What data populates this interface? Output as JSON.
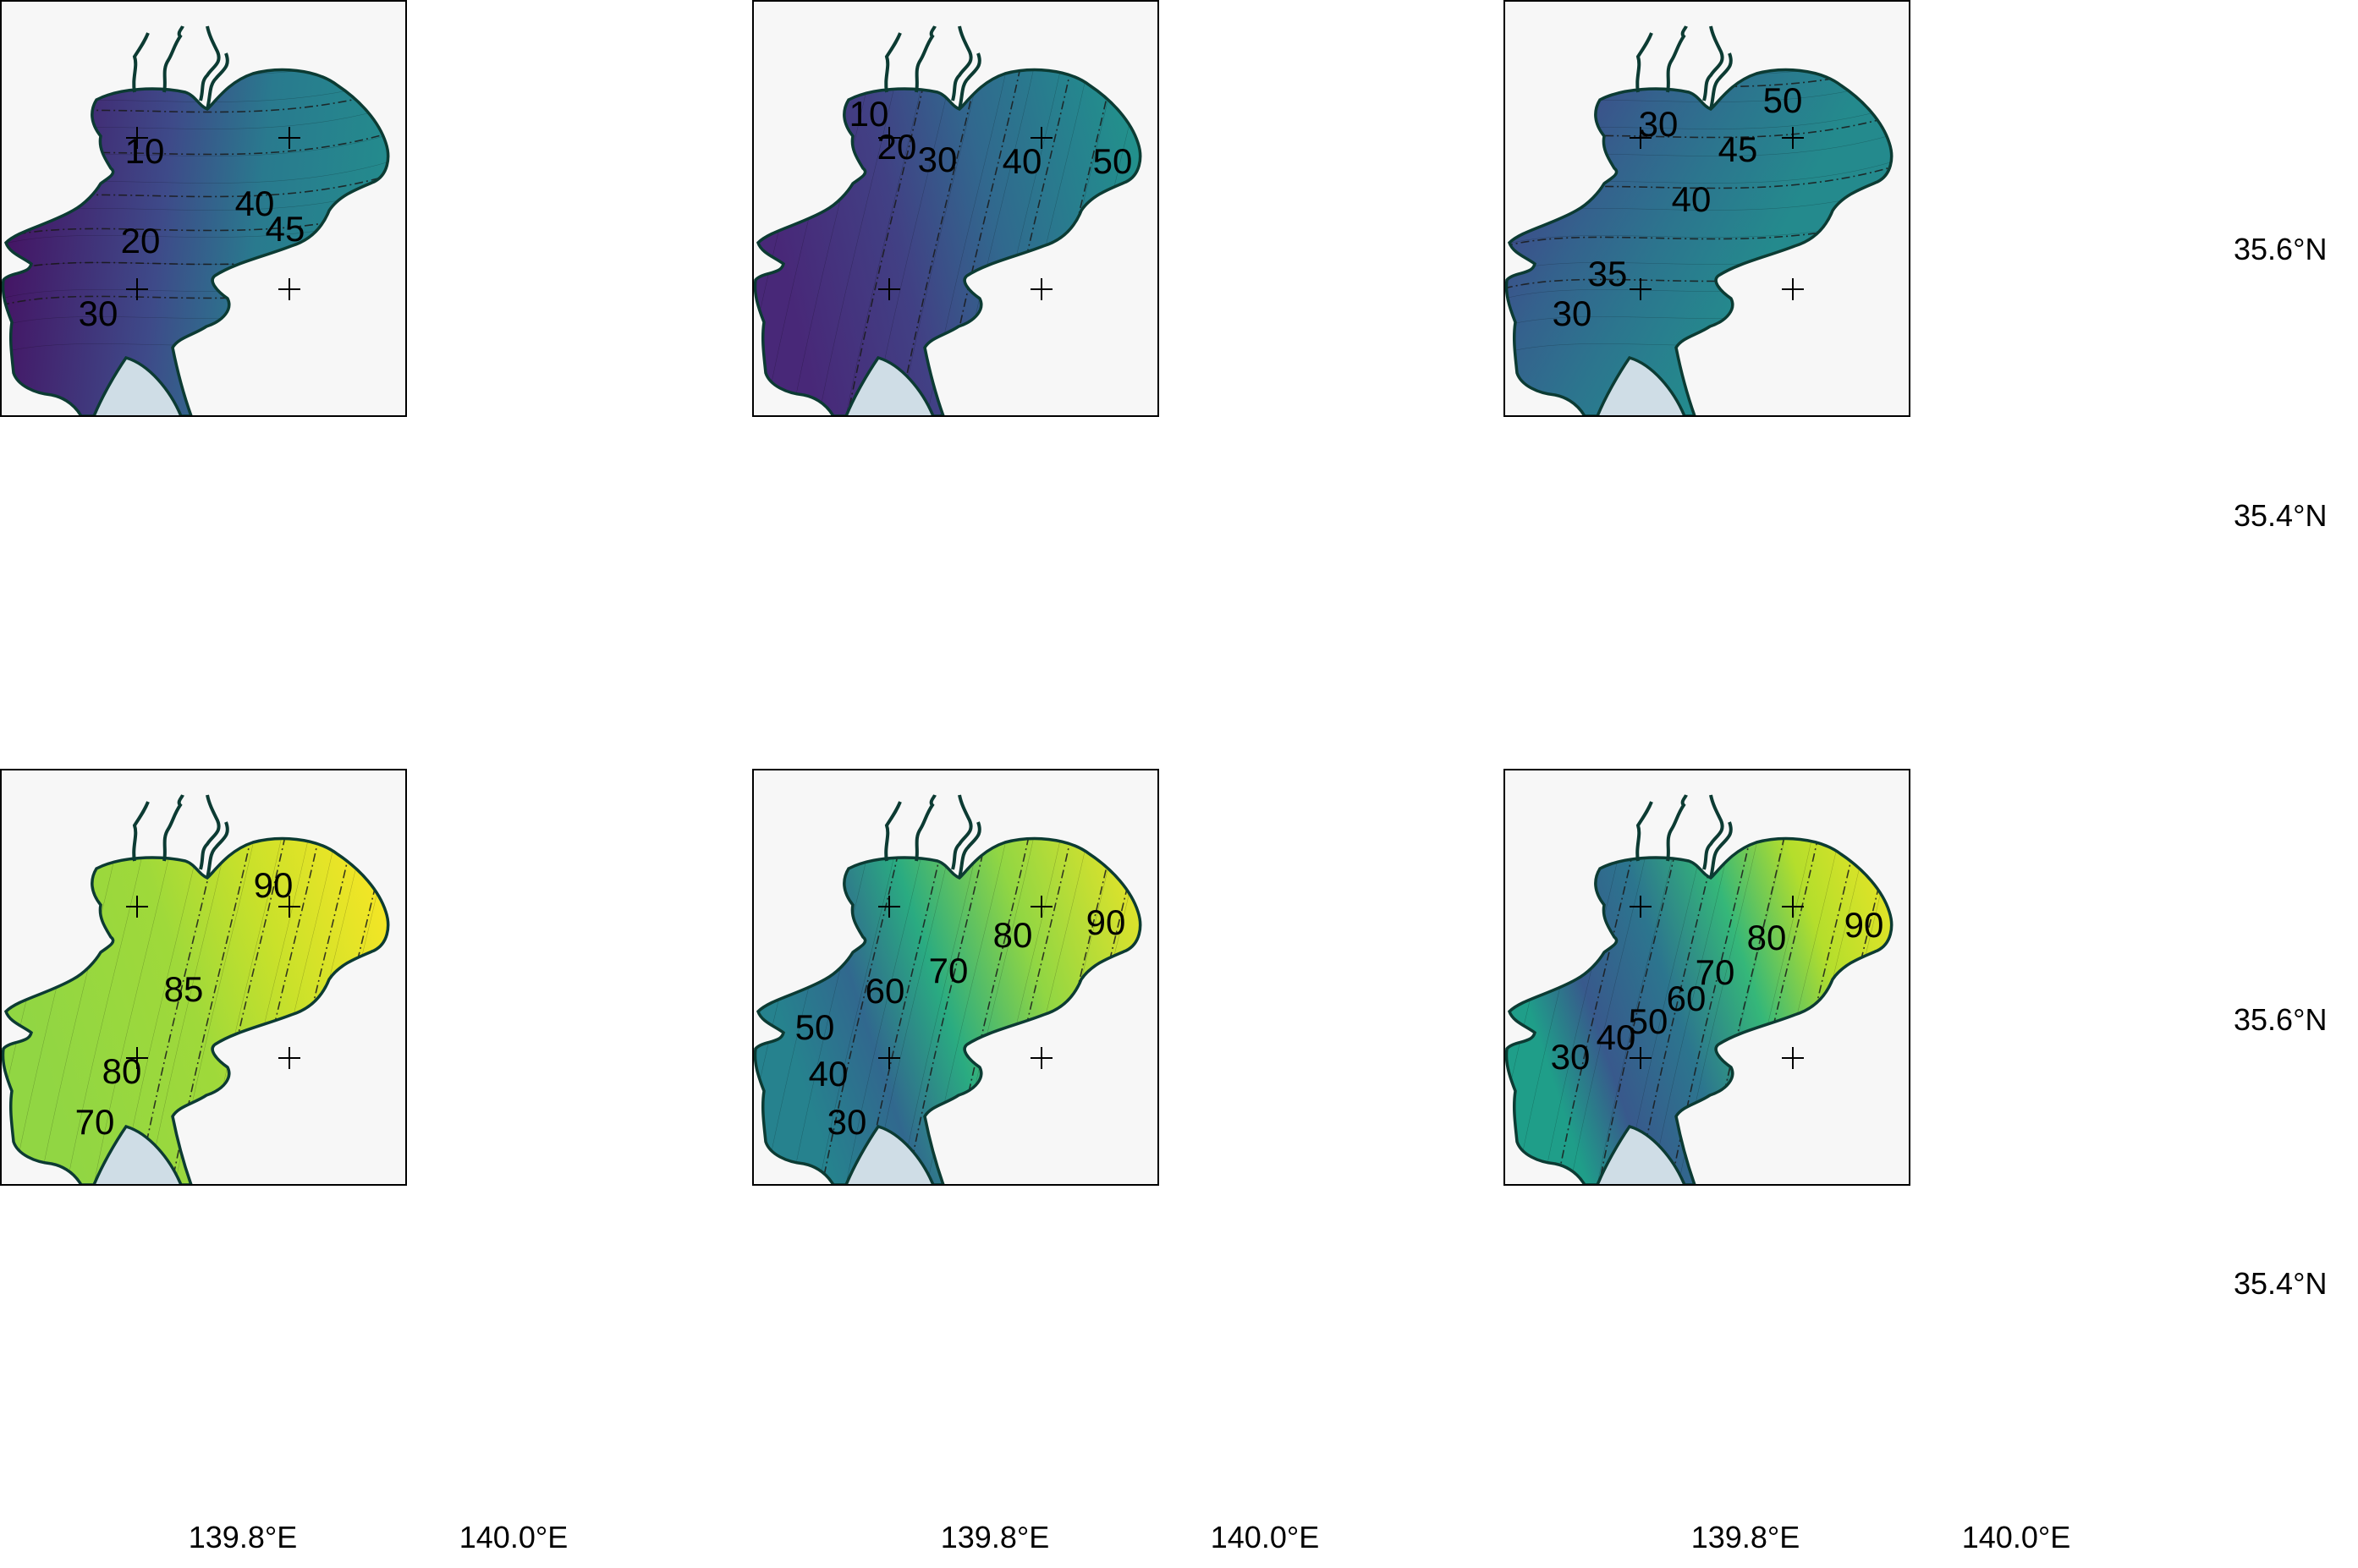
{
  "colors": {
    "background": "#f7f7f7",
    "coastline": "#0c3b33",
    "ocean_patch": "#cfdde6",
    "frame": "#000000",
    "colormap": "viridis"
  },
  "axis_labels": {
    "lon": [
      "139.8°E",
      "140.0°E"
    ],
    "lat": [
      "35.6°N",
      "35.4°N"
    ]
  },
  "chart_data": {
    "type": "map",
    "layout": "2 rows × 3 columns of contour maps of Tokyo Bay",
    "graticule_crosses": [
      {
        "lon": 139.8,
        "lat": 35.6
      },
      {
        "lon": 140.0,
        "lat": 35.6
      },
      {
        "lon": 139.8,
        "lat": 35.4
      },
      {
        "lon": 140.0,
        "lat": 35.4
      }
    ],
    "panels": [
      {
        "row": 1,
        "col": 1,
        "contour_labels": [
          "10",
          "20",
          "30",
          "40",
          "45"
        ],
        "value_range": [
          5,
          50
        ]
      },
      {
        "row": 1,
        "col": 2,
        "contour_labels": [
          "10",
          "20",
          "30",
          "40",
          "50"
        ],
        "value_range": [
          5,
          55
        ]
      },
      {
        "row": 1,
        "col": 3,
        "contour_labels": [
          "30",
          "45",
          "40",
          "50",
          "35",
          "30"
        ],
        "value_range": [
          25,
          55
        ]
      },
      {
        "row": 2,
        "col": 1,
        "contour_labels": [
          "90",
          "85",
          "80",
          "70"
        ],
        "value_range": [
          65,
          95
        ]
      },
      {
        "row": 2,
        "col": 2,
        "contour_labels": [
          "90",
          "80",
          "70",
          "60",
          "50",
          "40",
          "30"
        ],
        "value_range": [
          25,
          95
        ]
      },
      {
        "row": 2,
        "col": 3,
        "contour_labels": [
          "90",
          "80",
          "70",
          "60",
          "50",
          "40",
          "30"
        ],
        "value_range": [
          25,
          95
        ]
      }
    ]
  }
}
